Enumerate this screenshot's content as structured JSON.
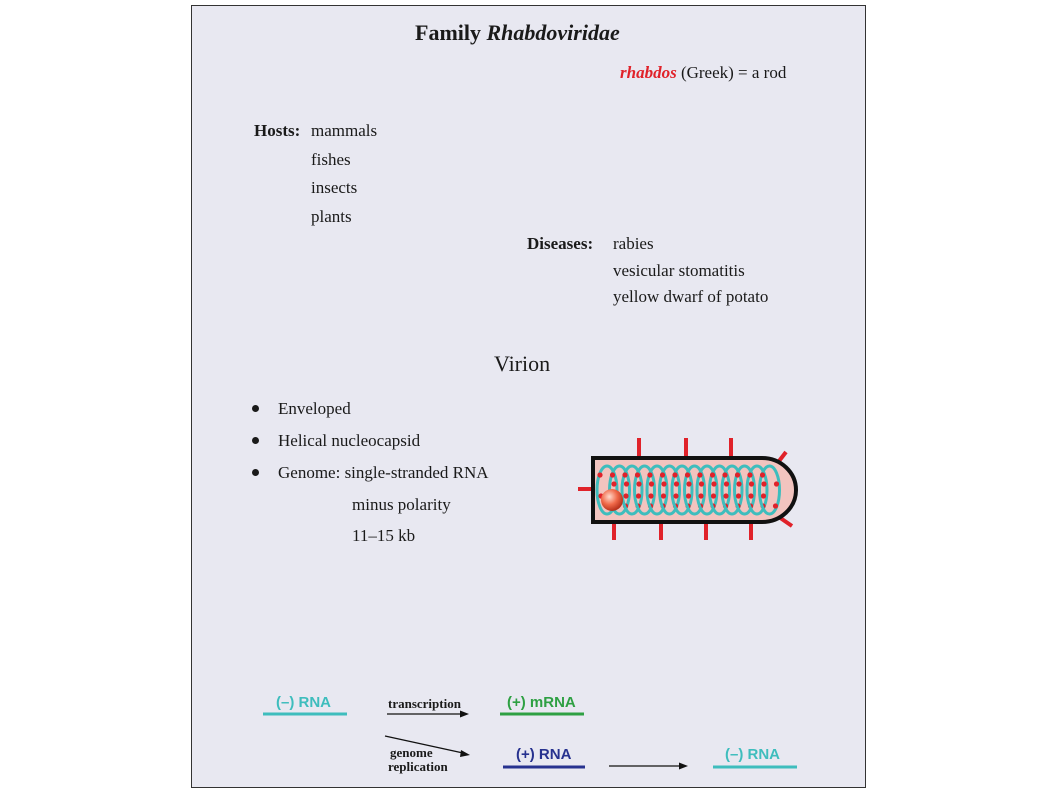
{
  "family": {
    "prefix": "Family",
    "name": "Rhabdoviridae"
  },
  "etymology": {
    "word": "rhabdos",
    "meaning": "(Greek) = a rod"
  },
  "hosts": {
    "label": "Hosts:",
    "items": [
      "mammals",
      "fishes",
      "insects",
      "plants"
    ]
  },
  "diseases": {
    "label": "Diseases:",
    "items": [
      "rabies",
      "vesicular stomatitis",
      "yellow dwarf of potato"
    ]
  },
  "virion": {
    "heading": "Virion",
    "bullets": [
      "Enveloped",
      "Helical nucleocapsid",
      "Genome: single-stranded RNA"
    ],
    "genome_details": [
      "minus polarity",
      "11–15 kb"
    ]
  },
  "scheme": {
    "minus_rna": "(–) RNA",
    "transcription": "transcription",
    "plus_mrna": "(+) mRNA",
    "genome_replication_1": "genome",
    "genome_replication_2": "replication",
    "plus_rna": "(+) RNA",
    "minus_rna_2": "(–) RNA"
  },
  "colors": {
    "red": "#e0222a",
    "teal": "#3ebdbd",
    "green": "#2ea043",
    "navy": "#27328f",
    "envelope": "#f2c4bf"
  }
}
